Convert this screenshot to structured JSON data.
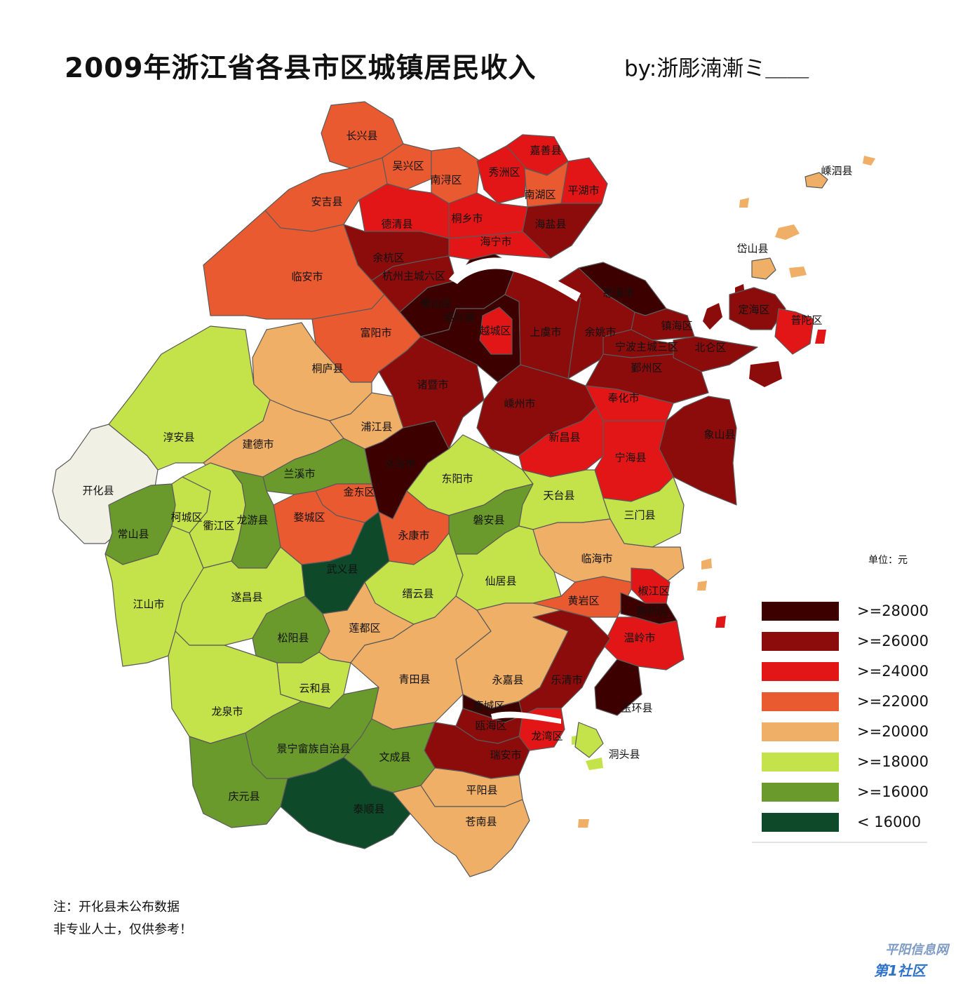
{
  "title": "2009年浙江省各县市区城镇居民收入",
  "author": "by:浙彫湳漸ミ＿＿",
  "unit": "单位：元",
  "notes": [
    "注：开化县未公布数据",
    "非专业人士，仅供参考！"
  ],
  "watermark": {
    "line1": "平阳信息网",
    "line2": "第1社区"
  },
  "legend": [
    {
      "label": ">=28000",
      "color": "#3c0000"
    },
    {
      "label": ">=26000",
      "color": "#8c0c0c"
    },
    {
      "label": ">=24000",
      "color": "#e21616"
    },
    {
      "label": ">=22000",
      "color": "#ea5a31"
    },
    {
      "label": ">=20000",
      "color": "#f0af66"
    },
    {
      "label": ">=18000",
      "color": "#c4e24a"
    },
    {
      "label": ">=16000",
      "color": "#6a9a2b"
    },
    {
      "label": "< 16000",
      "color": "#0e4a2a"
    }
  ],
  "regions": [
    {
      "name": "长兴县",
      "class": ">=22000"
    },
    {
      "name": "吴兴区",
      "class": ">=22000"
    },
    {
      "name": "南浔区",
      "class": ">=22000"
    },
    {
      "name": "安吉县",
      "class": ">=22000"
    },
    {
      "name": "嘉善县",
      "class": ">=24000"
    },
    {
      "name": "秀洲区",
      "class": ">=24000"
    },
    {
      "name": "南湖区",
      "class": ">=22000"
    },
    {
      "name": "平湖市",
      "class": ">=24000"
    },
    {
      "name": "德清县",
      "class": ">=24000"
    },
    {
      "name": "桐乡市",
      "class": ">=24000"
    },
    {
      "name": "海盐县",
      "class": ">=26000"
    },
    {
      "name": "海宁市",
      "class": ">=24000"
    },
    {
      "name": "余杭区",
      "class": ">=26000"
    },
    {
      "name": "杭州主城六区",
      "class": ">=26000"
    },
    {
      "name": "临安市",
      "class": ">=22000"
    },
    {
      "name": "萧山区",
      "class": ">=28000"
    },
    {
      "name": "绍兴县",
      "class": ">=28000"
    },
    {
      "name": "越城区",
      "class": ">=24000"
    },
    {
      "name": "上虞市",
      "class": ">=26000"
    },
    {
      "name": "余姚市",
      "class": ">=26000"
    },
    {
      "name": "慈溪市",
      "class": ">=28000"
    },
    {
      "name": "镇海区",
      "class": ">=26000"
    },
    {
      "name": "宁波主城三区",
      "class": ">=26000"
    },
    {
      "name": "北仑区",
      "class": ">=26000"
    },
    {
      "name": "鄞州区",
      "class": ">=26000"
    },
    {
      "name": "定海区",
      "class": ">=26000"
    },
    {
      "name": "普陀区",
      "class": ">=24000"
    },
    {
      "name": "岱山县",
      "class": ">=20000"
    },
    {
      "name": "嵊泗县",
      "class": ">=20000"
    },
    {
      "name": "富阳市",
      "class": ">=22000"
    },
    {
      "name": "桐庐县",
      "class": ">=20000"
    },
    {
      "name": "淳安县",
      "class": ">=18000"
    },
    {
      "name": "开化县",
      "class": "未公布"
    },
    {
      "name": "建德市",
      "class": ">=20000"
    },
    {
      "name": "浦江县",
      "class": ">=20000"
    },
    {
      "name": "诸暨市",
      "class": ">=26000"
    },
    {
      "name": "嵊州市",
      "class": ">=26000"
    },
    {
      "name": "奉化市",
      "class": ">=24000"
    },
    {
      "name": "象山县",
      "class": ">=26000"
    },
    {
      "name": "新昌县",
      "class": ">=24000"
    },
    {
      "name": "宁海县",
      "class": ">=24000"
    },
    {
      "name": "义乌市",
      "class": ">=28000"
    },
    {
      "name": "东阳市",
      "class": ">=18000"
    },
    {
      "name": "兰溪市",
      "class": ">=16000"
    },
    {
      "name": "金东区",
      "class": ">=22000"
    },
    {
      "name": "婺城区",
      "class": ">=22000"
    },
    {
      "name": "常山县",
      "class": ">=16000"
    },
    {
      "name": "柯城区",
      "class": ">=18000"
    },
    {
      "name": "衢江区",
      "class": ">=18000"
    },
    {
      "name": "龙游县",
      "class": ">=16000"
    },
    {
      "name": "磐安县",
      "class": ">=16000"
    },
    {
      "name": "天台县",
      "class": ">=18000"
    },
    {
      "name": "三门县",
      "class": ">=18000"
    },
    {
      "name": "武义县",
      "class": "< 16000"
    },
    {
      "name": "永康市",
      "class": ">=22000"
    },
    {
      "name": "临海市",
      "class": ">=20000"
    },
    {
      "name": "江山市",
      "class": ">=18000"
    },
    {
      "name": "遂昌县",
      "class": ">=18000"
    },
    {
      "name": "缙云县",
      "class": ">=18000"
    },
    {
      "name": "仙居县",
      "class": ">=18000"
    },
    {
      "name": "椒江区",
      "class": ">=24000"
    },
    {
      "name": "黄岩区",
      "class": ">=22000"
    },
    {
      "name": "路桥区",
      "class": ">=28000"
    },
    {
      "name": "松阳县",
      "class": ">=16000"
    },
    {
      "name": "莲都区",
      "class": ">=20000"
    },
    {
      "name": "温岭市",
      "class": ">=24000"
    },
    {
      "name": "青田县",
      "class": ">=20000"
    },
    {
      "name": "永嘉县",
      "class": ">=20000"
    },
    {
      "name": "乐清市",
      "class": ">=26000"
    },
    {
      "name": "玉环县",
      "class": ">=28000"
    },
    {
      "name": "云和县",
      "class": ">=18000"
    },
    {
      "name": "龙泉市",
      "class": ">=18000"
    },
    {
      "name": "鹿城区",
      "class": ">=28000"
    },
    {
      "name": "瓯海区",
      "class": ">=26000"
    },
    {
      "name": "龙湾区",
      "class": ">=24000"
    },
    {
      "name": "瑞安市",
      "class": ">=26000"
    },
    {
      "name": "洞头县",
      "class": ">=18000"
    },
    {
      "name": "景宁畲族自治县",
      "class": ">=16000"
    },
    {
      "name": "文成县",
      "class": ">=16000"
    },
    {
      "name": "庆元县",
      "class": ">=16000"
    },
    {
      "name": "泰顺县",
      "class": "< 16000"
    },
    {
      "name": "平阳县",
      "class": ">=20000"
    },
    {
      "name": "苍南县",
      "class": ">=20000"
    }
  ]
}
